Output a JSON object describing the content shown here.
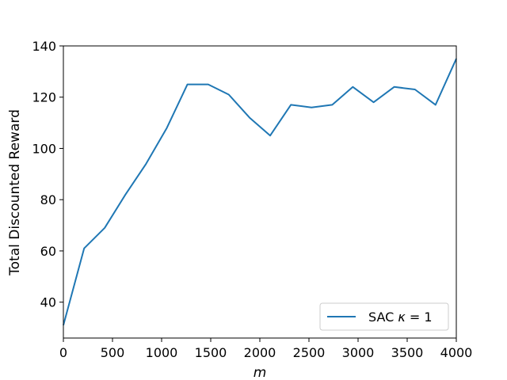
{
  "chart_data": {
    "type": "line",
    "xlabel": "m",
    "ylabel": "Total Discounted Reward",
    "xlim": [
      0,
      4000
    ],
    "ylim": [
      26,
      140
    ],
    "x_ticks": [
      0,
      500,
      1000,
      1500,
      2000,
      2500,
      3000,
      3500,
      4000
    ],
    "y_ticks": [
      40,
      60,
      80,
      100,
      120,
      140
    ],
    "grid": false,
    "legend_position": "bottom-right",
    "series": [
      {
        "name": "SAC κ = 1",
        "color": "#1f77b4",
        "x": [
          0,
          211,
          421,
          632,
          842,
          1053,
          1263,
          1474,
          1684,
          1895,
          2105,
          2316,
          2526,
          2737,
          2947,
          3158,
          3368,
          3579,
          3789,
          4000
        ],
        "y": [
          31,
          61,
          69,
          82,
          94,
          108,
          125,
          125,
          121,
          112,
          105,
          117,
          116,
          117,
          124,
          118,
          124,
          123,
          117,
          135
        ]
      }
    ]
  },
  "legend": {
    "prefix": "SAC ",
    "kappa": "κ",
    "eq": " = 1"
  }
}
